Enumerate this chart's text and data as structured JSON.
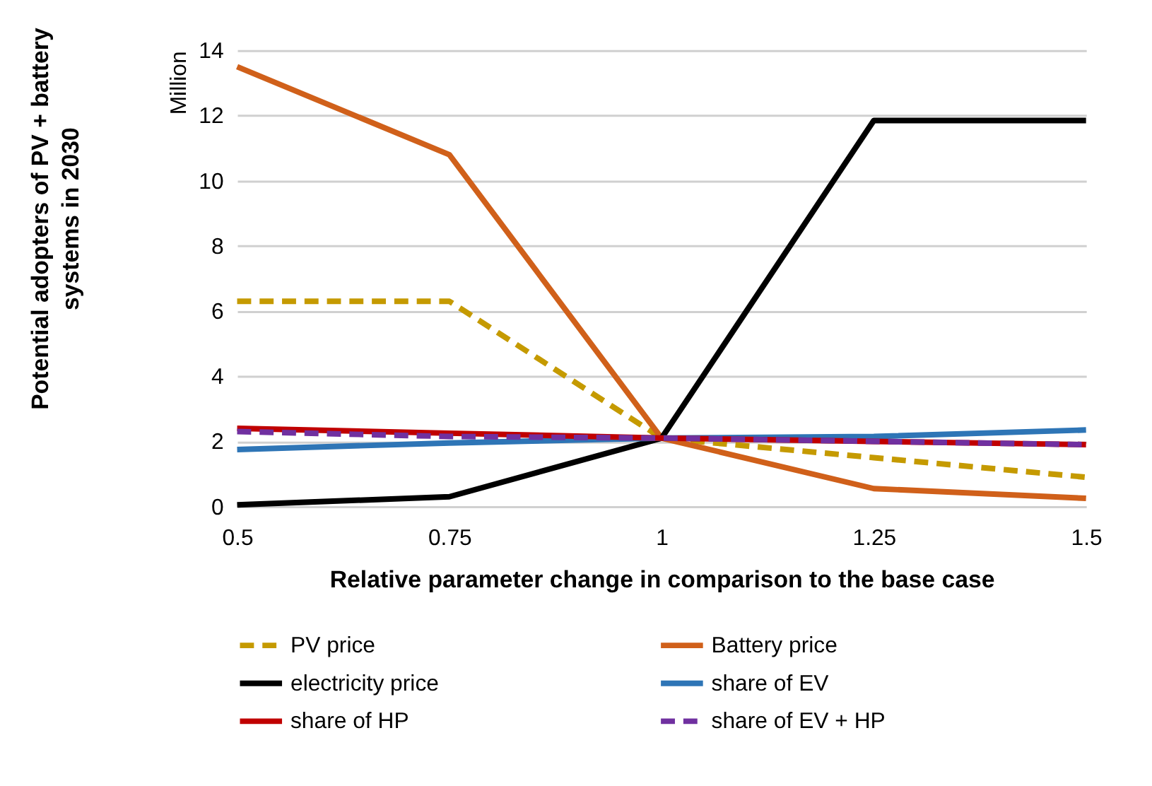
{
  "chart_data": {
    "type": "line",
    "xlabel": "Relative parameter change in comparison to the base case",
    "ylabel": "Million",
    "annotations": [
      "Potential adopters of PV + battery systems in 2030"
    ],
    "categories": [
      "0.5",
      "0.75",
      "1",
      "1.25",
      "1.5"
    ],
    "ylim": [
      0,
      14
    ],
    "yticks": [
      0,
      2,
      4,
      6,
      8,
      10,
      12,
      14
    ],
    "grid": "y",
    "legend": "bottom",
    "series": [
      {
        "name": "PV price",
        "color": "#c59a00",
        "line_style": "dashed",
        "values": [
          6.3,
          6.3,
          2.1,
          1.5,
          0.9
        ]
      },
      {
        "name": "Battery price",
        "color": "#d0601a",
        "line_style": "solid",
        "values": [
          13.5,
          10.8,
          2.1,
          0.55,
          0.25
        ]
      },
      {
        "name": "electricity price",
        "color": "#000000",
        "line_style": "solid",
        "values": [
          0.05,
          0.3,
          2.1,
          11.85,
          11.85
        ]
      },
      {
        "name": "share of EV",
        "color": "#2e75b6",
        "line_style": "solid",
        "values": [
          1.75,
          1.95,
          2.1,
          2.15,
          2.35
        ]
      },
      {
        "name": "share of HP",
        "color": "#c00000",
        "line_style": "solid",
        "values": [
          2.4,
          2.25,
          2.1,
          2.0,
          1.9
        ]
      },
      {
        "name": "share of EV + HP",
        "color": "#7030a0",
        "line_style": "dashed",
        "values": [
          2.3,
          2.15,
          2.1,
          2.0,
          1.9
        ]
      }
    ]
  }
}
